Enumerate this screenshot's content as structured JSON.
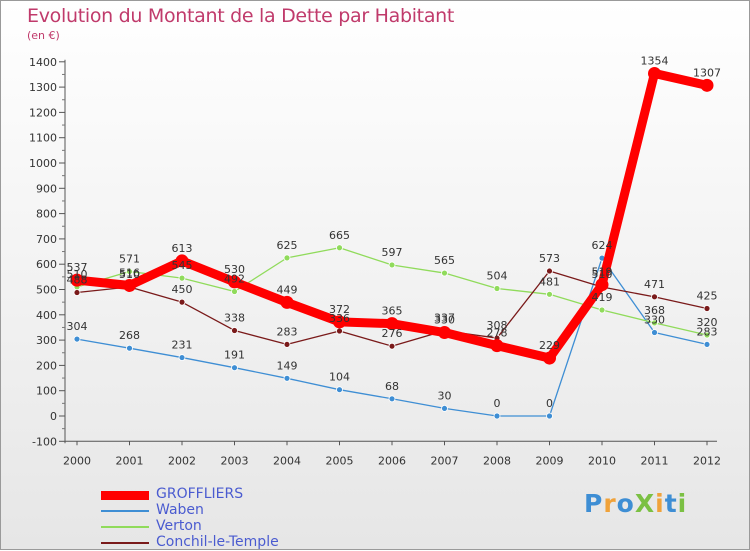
{
  "title": "Evolution du Montant de la Dette par Habitant",
  "subtitle": "(en €)",
  "logo_text": "ProXiti",
  "chart_data": {
    "type": "line",
    "categories": [
      "2000",
      "2001",
      "2002",
      "2003",
      "2004",
      "2005",
      "2006",
      "2007",
      "2008",
      "2009",
      "2010",
      "2011",
      "2012"
    ],
    "ylim": [
      -100,
      1400
    ],
    "yticks": [
      -100,
      0,
      100,
      200,
      300,
      400,
      500,
      600,
      700,
      800,
      900,
      1000,
      1100,
      1200,
      1300,
      1400
    ],
    "grid": false,
    "legend_position": "bottom-left",
    "series": [
      {
        "name": "GROFFLIERS",
        "color": "#ff0000",
        "values": [
          537,
          516,
          613,
          530,
          449,
          372,
          365,
          330,
          278,
          229,
          519,
          1354,
          1307
        ],
        "labels": [
          "537",
          "516",
          "613",
          "530",
          "449",
          "372",
          "365",
          "330",
          "278",
          "229",
          "519",
          "1354",
          "1307"
        ]
      },
      {
        "name": "Waben",
        "color": "#3e8ed4",
        "values": [
          304,
          268,
          231,
          191,
          149,
          104,
          68,
          30,
          0,
          0,
          624,
          330,
          283
        ],
        "labels": [
          "304",
          "268",
          "231",
          "191",
          "149",
          "104",
          "68",
          "30",
          "0",
          "0",
          "624",
          "330",
          "283"
        ]
      },
      {
        "name": "Verton",
        "color": "#90db5b",
        "values": [
          510,
          571,
          545,
          492,
          625,
          665,
          597,
          565,
          504,
          481,
          419,
          368,
          320
        ],
        "labels": [
          "510",
          "571",
          "545",
          "492",
          "625",
          "665",
          "597",
          "565",
          "504",
          "481",
          "419",
          "368",
          "320"
        ]
      },
      {
        "name": "Conchil-le-Temple",
        "color": "#7a1a1a",
        "values": [
          488,
          510,
          450,
          338,
          283,
          336,
          276,
          337,
          308,
          573,
          510,
          471,
          425
        ],
        "labels": [
          "488",
          "510",
          "450",
          "338",
          "283",
          "336",
          "276",
          "337",
          "308",
          "573",
          "510",
          "471",
          "425"
        ]
      }
    ]
  }
}
